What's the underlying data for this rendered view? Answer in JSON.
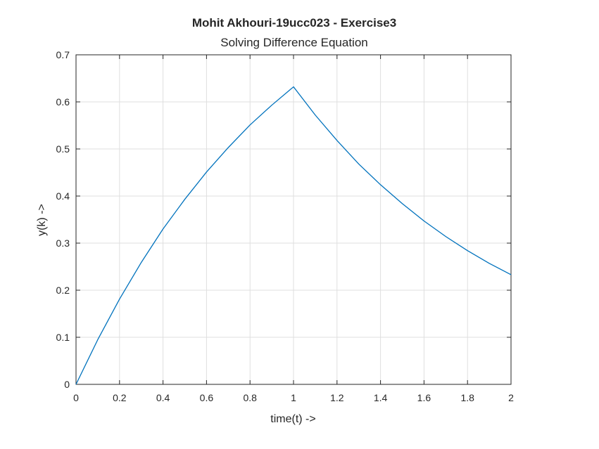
{
  "chart_data": {
    "type": "line",
    "title": "Mohit Akhouri-19ucc023 - Exercise3",
    "subtitle": "Solving Difference Equation",
    "xlabel": "time(t) ->",
    "ylabel": "y(k) ->",
    "xlim": [
      0,
      2
    ],
    "ylim": [
      0,
      0.7
    ],
    "xticks": [
      "0",
      "0.2",
      "0.4",
      "0.6",
      "0.8",
      "1",
      "1.2",
      "1.4",
      "1.6",
      "1.8",
      "2"
    ],
    "yticks": [
      "0",
      "0.1",
      "0.2",
      "0.3",
      "0.4",
      "0.5",
      "0.6",
      "0.7"
    ],
    "grid": true,
    "series": [
      {
        "color": "#0072bd",
        "x": [
          0,
          0.1,
          0.2,
          0.3,
          0.4,
          0.5,
          0.6,
          0.7,
          0.8,
          0.9,
          1.0,
          1.1,
          1.2,
          1.3,
          1.4,
          1.5,
          1.6,
          1.7,
          1.8,
          1.9,
          2.0
        ],
        "y": [
          0,
          0.095,
          0.181,
          0.259,
          0.33,
          0.393,
          0.451,
          0.503,
          0.551,
          0.593,
          0.632,
          0.572,
          0.518,
          0.468,
          0.424,
          0.384,
          0.347,
          0.314,
          0.284,
          0.257,
          0.233
        ]
      }
    ]
  }
}
